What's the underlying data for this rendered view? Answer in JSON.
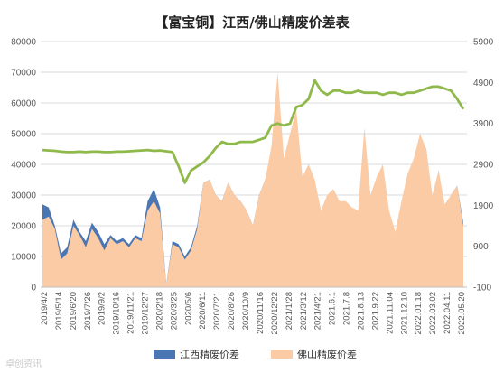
{
  "chart_data": {
    "type": "area",
    "title": "【富宝铜】江西/佛山精废价差表",
    "xlabel": "",
    "ylabel": "",
    "left_axis": {
      "ylim": [
        0,
        80000
      ],
      "ticks": [
        "0",
        "10000",
        "20000",
        "30000",
        "40000",
        "50000",
        "60000",
        "70000",
        "80000"
      ]
    },
    "right_axis": {
      "ylim": [
        -100,
        5900
      ],
      "ticks": [
        "-100",
        "900",
        "1900",
        "2900",
        "3900",
        "4900",
        "5900"
      ]
    },
    "x_tick_labels": [
      "2019/4/2",
      "2019/5/14",
      "2019/6/20",
      "2019/7/26",
      "2019/9/2",
      "2019/10/16",
      "2019/11/21",
      "2019/12/27",
      "2020/2/18",
      "2020/3/25",
      "2020/5/6",
      "2020/6/11",
      "2020/7/21",
      "2020/8/26",
      "2020/10/9",
      "2020/11/16",
      "2020/12/22",
      "2021/1/28",
      "2021/3/12",
      "2021/4/21",
      "2021.6.1",
      "2021.7.8",
      "2021.8.13",
      "2021.9.22",
      "2021.11.04",
      "2021.12.10",
      "2022.01.18",
      "2022.03.02",
      "2022.04.11",
      "2022.05.20"
    ],
    "grid": true,
    "legend_position": "bottom",
    "series": [
      {
        "name": "江西精废价差",
        "axis": "left",
        "kind": "area",
        "color": "#4a76b3",
        "values": [
          27000,
          26000,
          20000,
          11000,
          13000,
          22000,
          18000,
          15000,
          21000,
          18000,
          14000,
          17000,
          15000,
          16000,
          14000,
          17000,
          16000,
          28000,
          32000,
          26000,
          1000,
          15000,
          14000,
          10000,
          13000,
          20000,
          34000,
          35000,
          30000,
          28000,
          34000,
          30000,
          28000,
          25000,
          20000,
          30000,
          35000,
          44000,
          65000,
          40000,
          48000,
          55000,
          35000,
          38000,
          33000,
          22000,
          28000,
          30000,
          25000,
          26000,
          26000,
          22000,
          50000,
          28000,
          35000,
          38000,
          22000,
          14000,
          25000,
          35000,
          40000,
          48000,
          45000,
          28000,
          38000,
          25000,
          30000,
          33000,
          21000
        ]
      },
      {
        "name": "佛山精废价差",
        "axis": "left",
        "kind": "area",
        "color": "#fbcba5",
        "values": [
          22000,
          23000,
          19000,
          9000,
          11000,
          20000,
          17000,
          13000,
          19000,
          16000,
          12000,
          16000,
          14000,
          15000,
          13000,
          16000,
          15000,
          25000,
          28000,
          24000,
          1000,
          14000,
          13000,
          9000,
          12000,
          19000,
          34000,
          35000,
          30000,
          28000,
          34000,
          30000,
          28000,
          25000,
          20000,
          30000,
          35000,
          46000,
          70000,
          42000,
          50000,
          58000,
          36000,
          40000,
          35000,
          25000,
          30000,
          32000,
          28000,
          28000,
          26000,
          25000,
          52000,
          30000,
          36000,
          40000,
          25000,
          18000,
          28000,
          37000,
          42000,
          50000,
          45000,
          30000,
          38000,
          27000,
          30000,
          33000,
          20000
        ]
      },
      {
        "name": "",
        "axis": "right",
        "kind": "line",
        "color": "#8fb94b",
        "values": [
          3250,
          3240,
          3230,
          3210,
          3200,
          3200,
          3210,
          3200,
          3210,
          3210,
          3200,
          3200,
          3210,
          3210,
          3220,
          3230,
          3240,
          3250,
          3230,
          3240,
          3220,
          3200,
          2850,
          2450,
          2750,
          2850,
          2950,
          3100,
          3300,
          3450,
          3400,
          3400,
          3450,
          3450,
          3450,
          3500,
          3550,
          3850,
          3900,
          3850,
          3900,
          4300,
          4350,
          4500,
          4950,
          4700,
          4600,
          4700,
          4700,
          4650,
          4650,
          4700,
          4650,
          4650,
          4650,
          4600,
          4650,
          4650,
          4600,
          4650,
          4650,
          4700,
          4750,
          4800,
          4800,
          4750,
          4700,
          4500,
          4250
        ]
      }
    ]
  },
  "watermark": "卓创资讯"
}
